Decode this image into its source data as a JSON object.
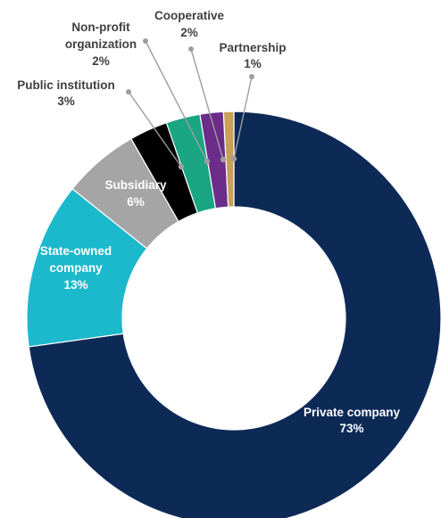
{
  "chart_data": {
    "type": "donut",
    "title": "",
    "unit": "%",
    "slices": [
      {
        "name": "Private company",
        "value": 73,
        "label": "73%",
        "color": "#0d2a57",
        "label_color": "#ffffff"
      },
      {
        "name": "State-owned company",
        "value": 13,
        "label": "13%",
        "color": "#1cb8cc",
        "label_color": "#ffffff"
      },
      {
        "name": "Subsidiary",
        "value": 6,
        "label": "6%",
        "color": "#a5a5a5",
        "label_color": "#ffffff"
      },
      {
        "name": "Public institution",
        "value": 3,
        "label": "3%",
        "color": "#000000",
        "label_color": "#404040"
      },
      {
        "name": "Non-profit organization",
        "value": 2,
        "label": "2%",
        "color": "#1aa583",
        "label_color": "#404040"
      },
      {
        "name": "Cooperative",
        "value": 2,
        "label": "2%",
        "color": "#6b2c8a",
        "label_color": "#404040"
      },
      {
        "name": "Partnership",
        "value": 1,
        "label": "1%",
        "color": "#c8a05a",
        "label_color": "#404040"
      }
    ],
    "leader_line_color": "#9e9e9e",
    "legend": "none"
  }
}
